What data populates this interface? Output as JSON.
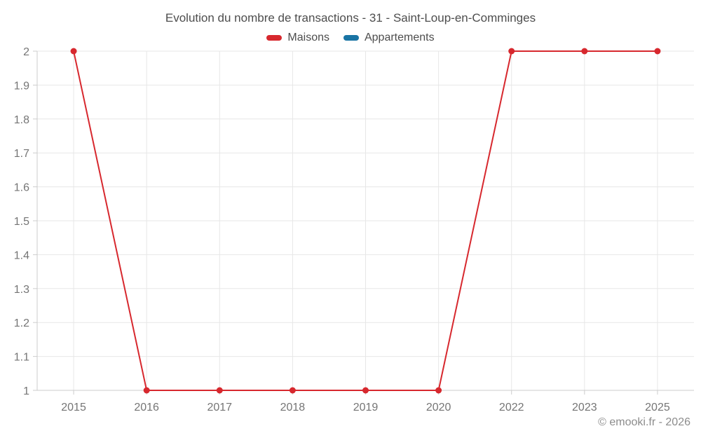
{
  "title": "Evolution du nombre de transactions - 31 - Saint-Loup-en-Comminges",
  "footer": "© emooki.fr - 2026",
  "colors": {
    "maisons": "#d7282e",
    "appartements": "#1974a4",
    "grid": "#e7e7e7",
    "axis": "#cccccc",
    "tick_text": "#757575",
    "title_text": "#4d4d4d"
  },
  "chart_data": {
    "type": "line",
    "title": "Evolution du nombre de transactions - 31 - Saint-Loup-en-Comminges",
    "categories": [
      "2015",
      "2016",
      "2017",
      "2018",
      "2019",
      "2020",
      "2022",
      "2023",
      "2025"
    ],
    "series": [
      {
        "name": "Maisons",
        "color": "#d7282e",
        "values": [
          2,
          1,
          1,
          1,
          1,
          1,
          2,
          2,
          2
        ]
      },
      {
        "name": "Appartements",
        "color": "#1974a4",
        "values": []
      }
    ],
    "ylim": [
      1,
      2
    ],
    "yticks": [
      1,
      1.1,
      1.2,
      1.3,
      1.4,
      1.5,
      1.6,
      1.7,
      1.8,
      1.9,
      2
    ],
    "ytick_labels": [
      "1",
      "1.1",
      "1.2",
      "1.3",
      "1.4",
      "1.5",
      "1.6",
      "1.7",
      "1.8",
      "1.9",
      "2"
    ],
    "xlabel": "",
    "ylabel": "",
    "grid": true,
    "legend_position": "top"
  }
}
